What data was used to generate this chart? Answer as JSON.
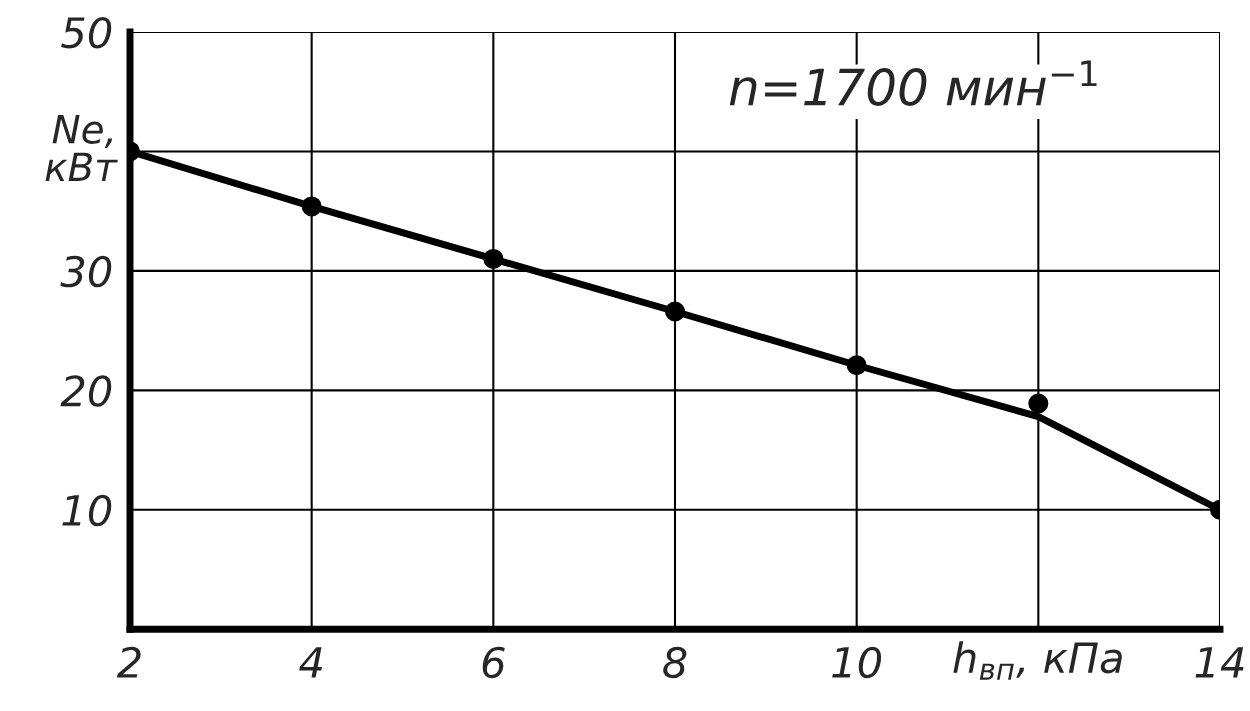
{
  "chart_data": {
    "type": "line",
    "title": "n=1700 мин$^{−1}$",
    "xlabel": "h$_{вп}$, кПа",
    "ylabel": "Ne,\nкВт",
    "x": [
      2,
      4,
      6,
      8,
      10,
      12,
      14
    ],
    "series": [
      {
        "color": "#000000",
        "marker": "none",
        "line_style": "solid",
        "values": [
          40,
          35.4,
          31,
          26.6,
          22.1,
          17.8,
          10
        ]
      },
      {
        "type": "scatter",
        "color": "#000000",
        "marker": "circle",
        "values": [
          40,
          35.4,
          31,
          26.6,
          22.1,
          18.9,
          10
        ]
      }
    ],
    "xlim": [
      2,
      14
    ],
    "ylim": [
      0,
      50
    ],
    "xticks": [
      2,
      4,
      6,
      8,
      10,
      {
        "value": 12,
        "label": null
      },
      14
    ],
    "yticks": [
      10,
      20,
      30,
      {
        "value": 40,
        "label": null
      },
      50
    ],
    "grid": true,
    "legend": false
  }
}
